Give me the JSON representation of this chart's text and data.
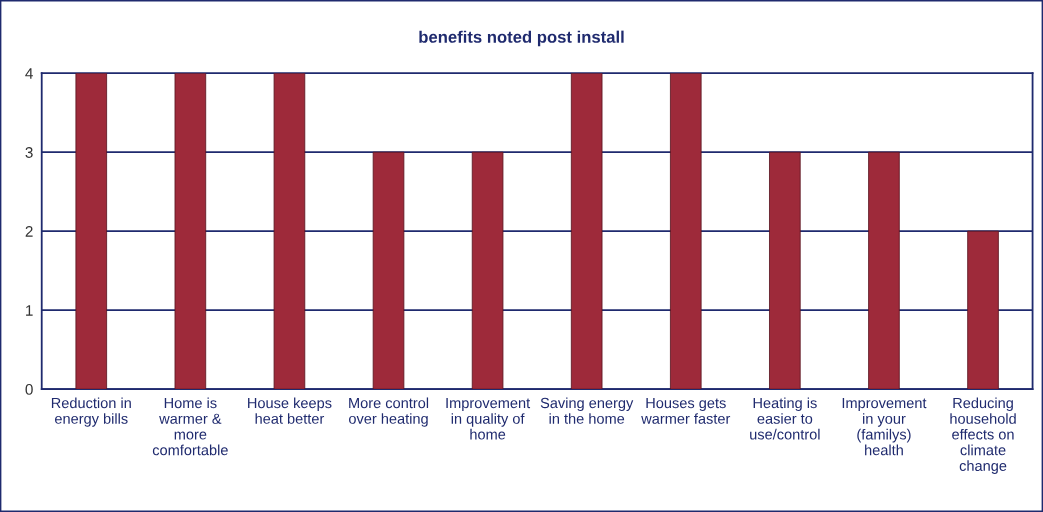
{
  "chart_data": {
    "type": "bar",
    "title": "benefits noted post install",
    "categories": [
      "Reduction in\nenergy bills",
      "Home is\nwarmer &\nmore\ncomfortable",
      "House keeps\nheat better",
      "More control\nover heating",
      "Improvement\nin quality of\nhome",
      "Saving energy\nin the home",
      "Houses gets\nwarmer faster",
      "Heating is\neasier to\nuse/control",
      "Improvement\nin your\n(familys)\nhealth",
      "Reducing\nhousehold\neffects on\nclimate\nchange"
    ],
    "values": [
      4,
      4,
      4,
      3,
      3,
      4,
      4,
      3,
      3,
      2
    ],
    "color": "#9e2a3a",
    "ylim": [
      0,
      4
    ],
    "yticks": [
      0,
      1,
      2,
      3,
      4
    ],
    "grid": "y",
    "legend": false
  }
}
